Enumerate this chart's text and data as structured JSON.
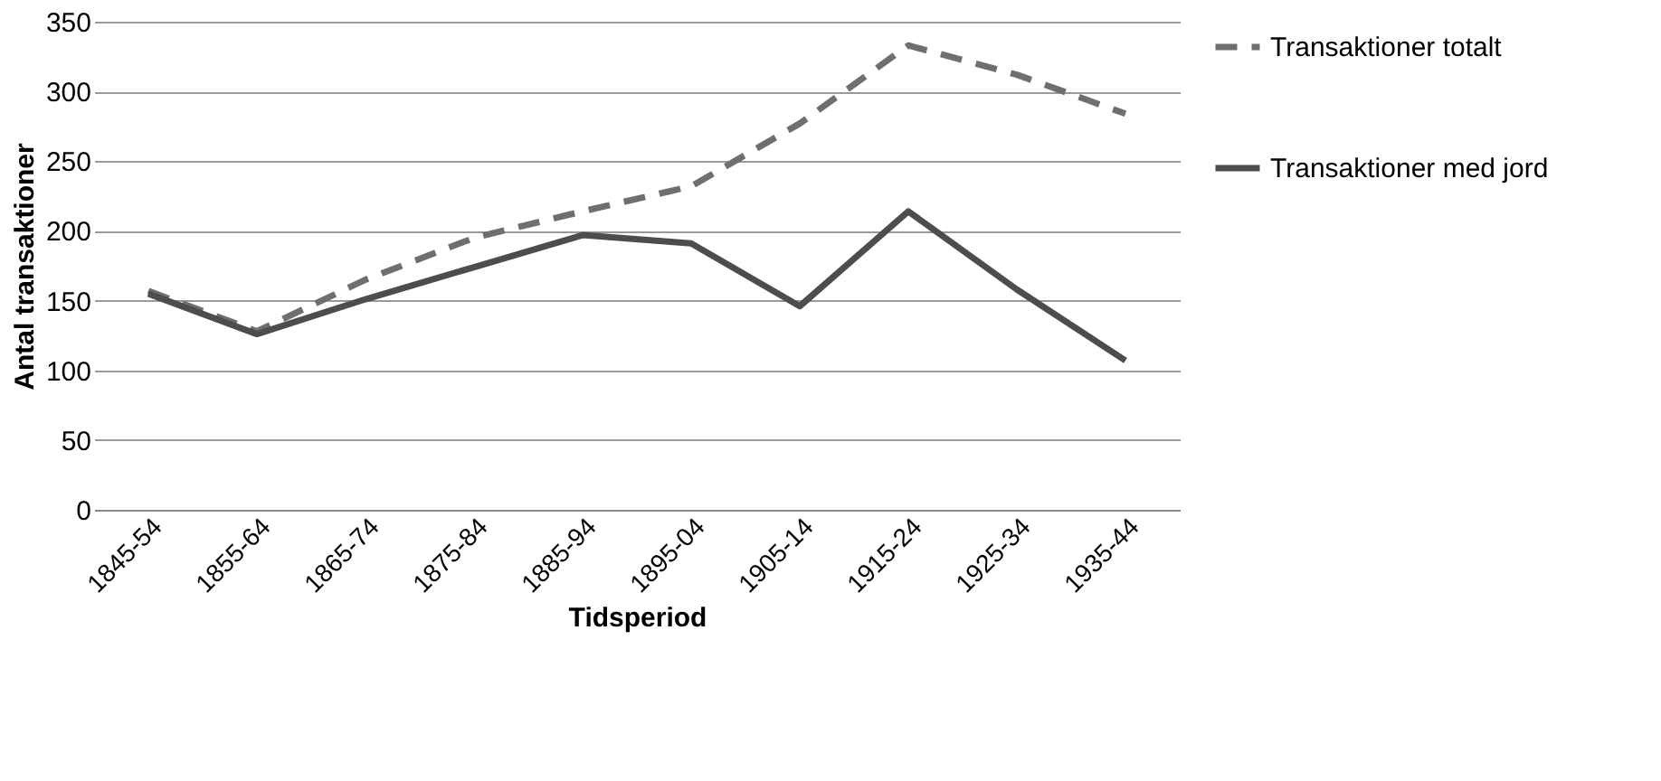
{
  "chart_data": {
    "type": "line",
    "xlabel": "Tidsperiod",
    "ylabel": "Antal transaktioner",
    "categories": [
      "1845-54",
      "1855-64",
      "1865-74",
      "1875-84",
      "1885-94",
      "1895-04",
      "1905-14",
      "1915-24",
      "1925-34",
      "1935-44"
    ],
    "series": [
      {
        "name": "Transaktioner totalt",
        "color": "#6f6f6f",
        "line_style": "dashed",
        "values": [
          157,
          128,
          165,
          195,
          214,
          232,
          277,
          333,
          312,
          284
        ]
      },
      {
        "name": "Transaktioner med jord",
        "color": "#4d4d4d",
        "line_style": "solid",
        "values": [
          155,
          126,
          151,
          174,
          197,
          191,
          146,
          214,
          158,
          107
        ]
      }
    ],
    "ylim": [
      0,
      350
    ],
    "yticks": [
      0,
      50,
      100,
      150,
      200,
      250,
      300,
      350
    ],
    "grid": "y",
    "legend": "right",
    "marker": "none"
  }
}
